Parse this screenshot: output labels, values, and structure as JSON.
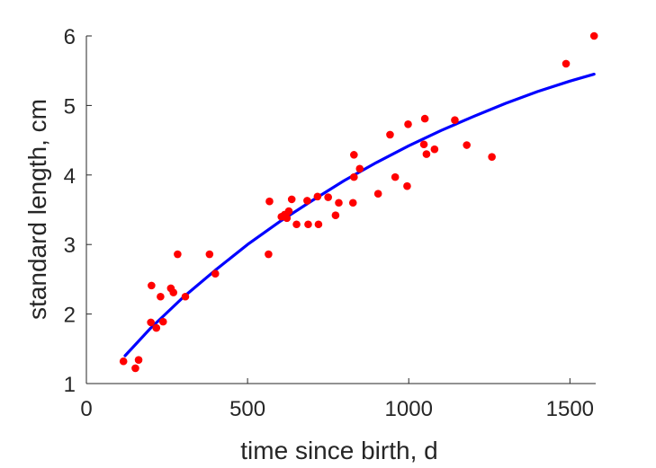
{
  "chart_data": {
    "type": "scatter",
    "title": "",
    "xlabel": "time since birth, d",
    "ylabel": "standard length, cm",
    "xlim": [
      0,
      1580
    ],
    "ylim": [
      1,
      6
    ],
    "xticks": [
      0,
      500,
      1000,
      1500
    ],
    "yticks": [
      1,
      2,
      3,
      4,
      5,
      6
    ],
    "xtick_labels": [
      "0",
      "500",
      "1000",
      "1500"
    ],
    "ytick_labels": [
      "1",
      "2",
      "3",
      "4",
      "5",
      "6"
    ],
    "grid": false,
    "series": [
      {
        "type": "scatter",
        "color": "#ff0000",
        "points": [
          [
            115,
            1.32
          ],
          [
            152,
            1.22
          ],
          [
            162,
            1.34
          ],
          [
            200,
            1.88
          ],
          [
            202,
            2.41
          ],
          [
            217,
            1.8
          ],
          [
            230,
            2.25
          ],
          [
            238,
            1.89
          ],
          [
            262,
            2.37
          ],
          [
            270,
            2.31
          ],
          [
            283,
            2.86
          ],
          [
            307,
            2.25
          ],
          [
            382,
            2.86
          ],
          [
            400,
            2.58
          ],
          [
            565,
            2.86
          ],
          [
            568,
            3.62
          ],
          [
            605,
            3.4
          ],
          [
            615,
            3.43
          ],
          [
            622,
            3.38
          ],
          [
            628,
            3.48
          ],
          [
            637,
            3.65
          ],
          [
            652,
            3.29
          ],
          [
            685,
            3.63
          ],
          [
            688,
            3.29
          ],
          [
            717,
            3.69
          ],
          [
            720,
            3.29
          ],
          [
            750,
            3.68
          ],
          [
            773,
            3.42
          ],
          [
            783,
            3.6
          ],
          [
            827,
            3.6
          ],
          [
            830,
            3.97
          ],
          [
            830,
            4.29
          ],
          [
            848,
            4.09
          ],
          [
            905,
            3.73
          ],
          [
            942,
            4.58
          ],
          [
            958,
            3.97
          ],
          [
            995,
            3.84
          ],
          [
            998,
            4.73
          ],
          [
            1047,
            4.44
          ],
          [
            1050,
            4.81
          ],
          [
            1055,
            4.3
          ],
          [
            1080,
            4.37
          ],
          [
            1143,
            4.79
          ],
          [
            1180,
            4.43
          ],
          [
            1258,
            4.26
          ],
          [
            1488,
            5.6
          ],
          [
            1575,
            6.0
          ]
        ]
      },
      {
        "type": "line",
        "color": "#0000ff",
        "x": [
          120,
          200,
          300,
          400,
          500,
          600,
          700,
          800,
          900,
          1000,
          1100,
          1200,
          1300,
          1400,
          1500,
          1575
        ],
        "y": [
          1.4,
          1.8,
          2.24,
          2.63,
          3.0,
          3.33,
          3.63,
          3.92,
          4.18,
          4.42,
          4.64,
          4.84,
          5.03,
          5.2,
          5.35,
          5.45
        ]
      }
    ]
  }
}
